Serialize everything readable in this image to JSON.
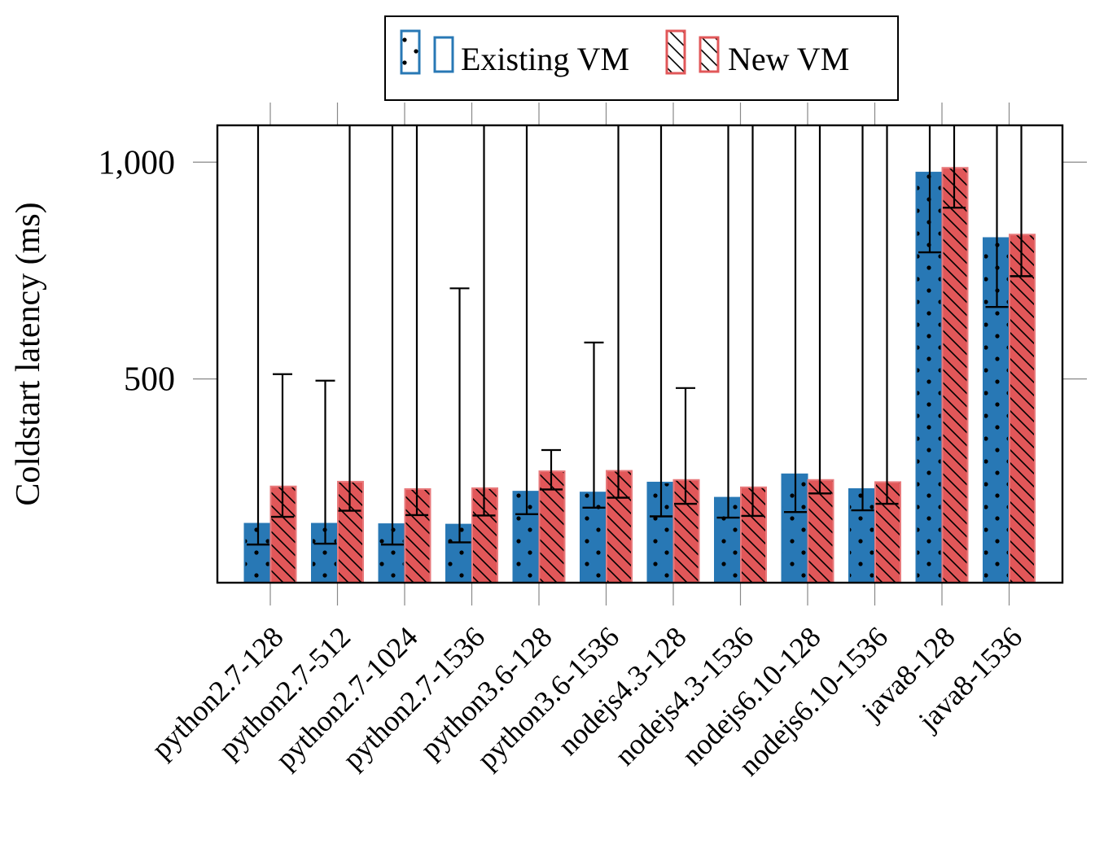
{
  "chart_data": {
    "type": "bar",
    "title": "",
    "xlabel": "",
    "ylabel": "Coldstart latency (ms)",
    "ylim": [
      30,
      1085
    ],
    "yticks": [
      500,
      1000
    ],
    "ytick_labels": [
      "500",
      "1,000"
    ],
    "grid": false,
    "legend_position": "top-center",
    "categories": [
      "python2.7-128",
      "python2.7-512",
      "python2.7-1024",
      "python2.7-1536",
      "python3.6-128",
      "python3.6-1536",
      "nodejs4.3-128",
      "nodejs4.3-1536",
      "nodejs6.10-128",
      "nodejs6.10-1536",
      "java8-128",
      "java8-1536"
    ],
    "series": [
      {
        "name": "Existing VM",
        "color": "#2878b5",
        "pattern": "dots",
        "values": [
          166,
          166,
          165,
          164,
          240,
          238,
          261,
          226,
          280,
          246,
          976,
          825
        ],
        "median": [
          118,
          120,
          118,
          123,
          188,
          203,
          183,
          180,
          193,
          197,
          792,
          666
        ],
        "whisker_high": [
          1085,
          496,
          1085,
          709,
          1085,
          584,
          1085,
          1085,
          1085,
          1085,
          1085,
          1085
        ]
      },
      {
        "name": "New VM",
        "color": "#e15759",
        "pattern": "diagonal-lines",
        "values": [
          252,
          263,
          246,
          248,
          287,
          288,
          267,
          250,
          267,
          262,
          987,
          833
        ],
        "median": [
          182,
          196,
          186,
          185,
          245,
          226,
          212,
          184,
          236,
          212,
          895,
          737
        ],
        "whisker_high": [
          511,
          1085,
          1085,
          1085,
          336,
          1085,
          479,
          1085,
          1085,
          1085,
          1085,
          1085
        ]
      }
    ]
  }
}
